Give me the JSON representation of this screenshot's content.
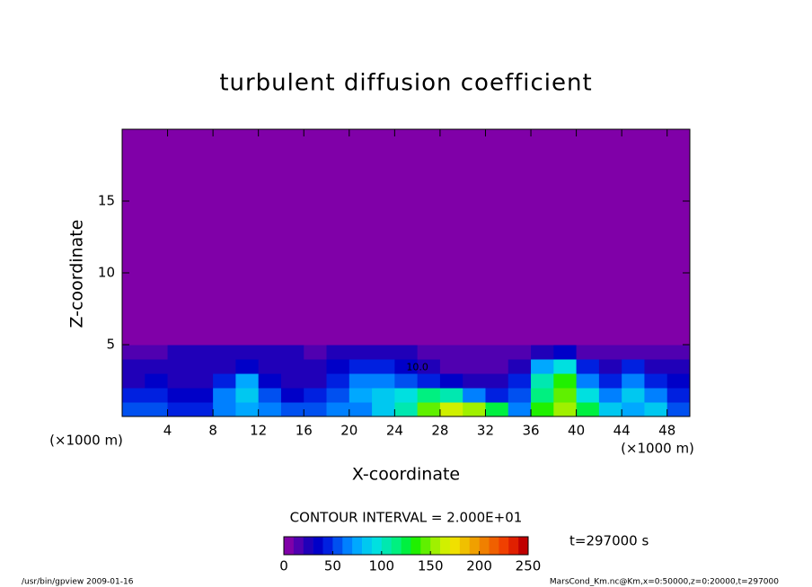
{
  "chart_data": {
    "type": "heatmap",
    "title": "turbulent diffusion coefficient",
    "x_label": "X-coordinate",
    "y_label": "Z-coordinate",
    "x_unit": "(×1000 m)",
    "y_unit": "(×1000 m)",
    "xlim": [
      0,
      50
    ],
    "ylim": [
      0,
      20
    ],
    "xticks": [
      4,
      8,
      12,
      16,
      20,
      24,
      28,
      32,
      36,
      40,
      44,
      48
    ],
    "yticks": [
      5,
      10,
      15
    ],
    "xbins": [
      0,
      2,
      4,
      6,
      8,
      10,
      12,
      14,
      16,
      18,
      20,
      22,
      24,
      26,
      28,
      30,
      32,
      34,
      36,
      38,
      40,
      42,
      44,
      46,
      48,
      50
    ],
    "ybins": [
      0,
      1,
      2,
      3,
      4,
      5,
      6,
      7,
      8,
      9,
      10,
      11,
      12,
      13,
      14,
      15,
      16,
      17,
      18,
      19,
      20
    ],
    "values": [
      [
        50,
        55,
        45,
        40,
        60,
        70,
        60,
        50,
        50,
        60,
        60,
        80,
        100,
        140,
        160,
        150,
        120,
        60,
        130,
        150,
        120,
        80,
        70,
        80,
        50
      ],
      [
        40,
        45,
        35,
        30,
        60,
        80,
        50,
        30,
        40,
        50,
        70,
        80,
        90,
        110,
        100,
        60,
        40,
        50,
        110,
        140,
        90,
        60,
        80,
        60,
        40
      ],
      [
        20,
        30,
        25,
        20,
        40,
        70,
        30,
        20,
        20,
        40,
        60,
        60,
        50,
        40,
        30,
        20,
        20,
        40,
        100,
        130,
        60,
        40,
        60,
        40,
        30
      ],
      [
        20,
        20,
        20,
        20,
        20,
        30,
        20,
        20,
        20,
        30,
        40,
        40,
        30,
        20,
        10,
        10,
        10,
        20,
        70,
        90,
        40,
        20,
        40,
        20,
        20
      ],
      [
        10,
        15,
        20,
        20,
        20,
        20,
        20,
        20,
        15,
        20,
        20,
        20,
        20,
        15,
        10,
        10,
        10,
        10,
        20,
        30,
        10,
        10,
        15,
        10,
        10
      ],
      [
        5,
        5,
        5,
        5,
        5,
        5,
        5,
        5,
        5,
        5,
        5,
        5,
        5,
        5,
        5,
        5,
        5,
        5,
        5,
        5,
        5,
        5,
        5,
        5,
        5
      ],
      [
        5,
        5,
        5,
        5,
        5,
        5,
        5,
        5,
        5,
        5,
        5,
        5,
        5,
        5,
        5,
        5,
        5,
        5,
        5,
        5,
        5,
        5,
        5,
        5,
        5
      ],
      [
        5,
        5,
        5,
        5,
        5,
        5,
        5,
        5,
        5,
        5,
        5,
        5,
        5,
        5,
        5,
        5,
        5,
        5,
        5,
        5,
        5,
        5,
        5,
        5,
        5
      ],
      [
        5,
        5,
        5,
        5,
        5,
        5,
        5,
        5,
        5,
        5,
        5,
        5,
        5,
        5,
        5,
        5,
        5,
        5,
        5,
        5,
        5,
        5,
        5,
        5,
        5
      ],
      [
        5,
        5,
        5,
        5,
        5,
        5,
        5,
        5,
        5,
        5,
        5,
        5,
        5,
        5,
        5,
        5,
        5,
        5,
        5,
        5,
        5,
        5,
        5,
        5,
        5
      ],
      [
        5,
        5,
        5,
        5,
        5,
        5,
        5,
        5,
        5,
        5,
        5,
        5,
        5,
        5,
        5,
        5,
        5,
        5,
        5,
        5,
        5,
        5,
        5,
        5,
        5
      ],
      [
        5,
        5,
        5,
        5,
        5,
        5,
        5,
        5,
        5,
        5,
        5,
        5,
        5,
        5,
        5,
        5,
        5,
        5,
        5,
        5,
        5,
        5,
        5,
        5,
        5
      ],
      [
        5,
        5,
        5,
        5,
        5,
        5,
        5,
        5,
        5,
        5,
        5,
        5,
        5,
        5,
        5,
        5,
        5,
        5,
        5,
        5,
        5,
        5,
        5,
        5,
        5
      ],
      [
        5,
        5,
        5,
        5,
        5,
        5,
        5,
        5,
        5,
        5,
        5,
        5,
        5,
        5,
        5,
        5,
        5,
        5,
        5,
        5,
        5,
        5,
        5,
        5,
        5
      ],
      [
        5,
        5,
        5,
        5,
        5,
        5,
        5,
        5,
        5,
        5,
        5,
        5,
        5,
        5,
        5,
        5,
        5,
        5,
        5,
        5,
        5,
        5,
        5,
        5,
        5
      ],
      [
        5,
        5,
        5,
        5,
        5,
        5,
        5,
        5,
        5,
        5,
        5,
        5,
        5,
        5,
        5,
        5,
        5,
        5,
        5,
        5,
        5,
        5,
        5,
        5,
        5
      ],
      [
        5,
        5,
        5,
        5,
        5,
        5,
        5,
        5,
        5,
        5,
        5,
        5,
        5,
        5,
        5,
        5,
        5,
        5,
        5,
        5,
        5,
        5,
        5,
        5,
        5
      ],
      [
        5,
        5,
        5,
        5,
        5,
        5,
        5,
        5,
        5,
        5,
        5,
        5,
        5,
        5,
        5,
        5,
        5,
        5,
        5,
        5,
        5,
        5,
        5,
        5,
        5
      ],
      [
        5,
        5,
        5,
        5,
        5,
        5,
        5,
        5,
        5,
        5,
        5,
        5,
        5,
        5,
        5,
        5,
        5,
        5,
        5,
        5,
        5,
        5,
        5,
        5,
        5
      ],
      [
        5,
        5,
        5,
        5,
        5,
        5,
        5,
        5,
        5,
        5,
        5,
        5,
        5,
        5,
        5,
        5,
        5,
        5,
        5,
        5,
        5,
        5,
        5,
        5,
        5
      ]
    ],
    "contour_label": "10.0",
    "clim": [
      0,
      250
    ],
    "colormap": [
      "#8000a8",
      "#5000b0",
      "#2000b8",
      "#0000c8",
      "#0020e0",
      "#0050f0",
      "#0080ff",
      "#00a8ff",
      "#00c8f0",
      "#00e0e0",
      "#00e8b0",
      "#00f080",
      "#00f040",
      "#20f000",
      "#60f000",
      "#a0f000",
      "#d0f000",
      "#f0e000",
      "#f0c000",
      "#f0a000",
      "#f08000",
      "#f06000",
      "#f04000",
      "#e02000",
      "#c00000"
    ],
    "colorbar_ticks": [
      0,
      50,
      100,
      150,
      200,
      250
    ],
    "contour_interval": "CONTOUR INTERVAL = 2.000E+01",
    "time_label": "t=297000 s",
    "footer_left": "/usr/bin/gpview  2009-01-16",
    "footer_right": "MarsCond_Km.nc@Km,x=0:50000,z=0:20000,t=297000"
  }
}
